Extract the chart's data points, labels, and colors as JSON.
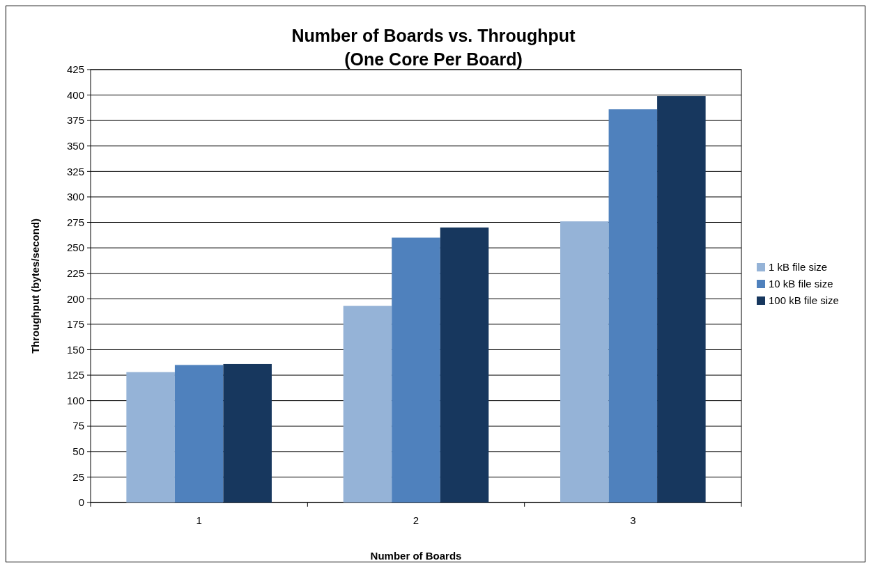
{
  "chart_data": {
    "type": "bar",
    "title": "Number of Boards vs. Throughput\n(One Core Per Board)",
    "xlabel": "Number of Boards",
    "ylabel": "Throughput (bytes/second)",
    "categories": [
      "1",
      "2",
      "3"
    ],
    "series": [
      {
        "name": "1 kB file size",
        "color": "#95b3d7",
        "values": [
          128,
          193,
          276
        ]
      },
      {
        "name": "10 kB file size",
        "color": "#4f81bd",
        "values": [
          135,
          260,
          386
        ]
      },
      {
        "name": "100 kB file size",
        "color": "#17375e",
        "values": [
          136,
          270,
          399
        ]
      }
    ],
    "ylim": [
      0,
      425
    ],
    "yticks": [
      0,
      25,
      50,
      75,
      100,
      125,
      150,
      175,
      200,
      225,
      250,
      275,
      300,
      325,
      350,
      375,
      400,
      425
    ],
    "grid": "y",
    "legend": "right"
  }
}
